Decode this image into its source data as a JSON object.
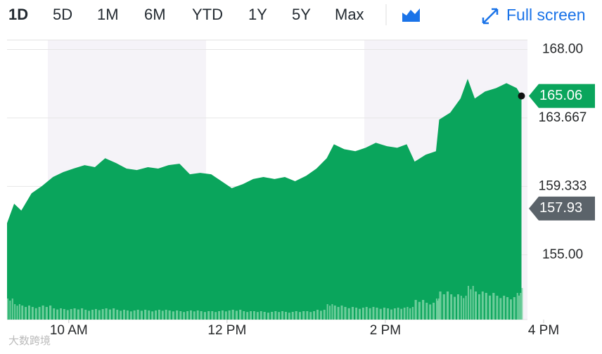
{
  "range_buttons": [
    "1D",
    "5D",
    "1M",
    "6M",
    "YTD",
    "1Y",
    "5Y",
    "Max"
  ],
  "active_range": 0,
  "full_screen": "Full screen",
  "watermark": "大数跨境",
  "chart_data": {
    "type": "area",
    "color": "#0aa55c",
    "x": [
      9.22,
      9.31,
      9.4,
      9.53,
      9.66,
      9.8,
      9.93,
      10.06,
      10.2,
      10.33,
      10.46,
      10.6,
      10.73,
      10.86,
      11.0,
      11.13,
      11.26,
      11.4,
      11.53,
      11.66,
      11.8,
      11.93,
      12.06,
      12.2,
      12.33,
      12.46,
      12.6,
      12.73,
      12.86,
      13.0,
      13.13,
      13.26,
      13.35,
      13.48,
      13.62,
      13.75,
      13.88,
      14.02,
      14.15,
      14.27,
      14.37,
      14.51,
      14.64,
      14.68,
      14.82,
      14.95,
      15.04,
      15.13,
      15.26,
      15.4,
      15.53,
      15.66,
      15.72
    ],
    "values": [
      157.0,
      158.24,
      157.8,
      158.9,
      159.35,
      159.93,
      160.24,
      160.46,
      160.68,
      160.55,
      161.12,
      160.81,
      160.46,
      160.37,
      160.55,
      160.46,
      160.68,
      160.77,
      160.1,
      160.19,
      160.1,
      159.66,
      159.22,
      159.48,
      159.8,
      159.93,
      159.8,
      159.93,
      159.66,
      160.01,
      160.46,
      161.12,
      162.0,
      161.69,
      161.56,
      161.78,
      162.1,
      161.88,
      161.78,
      162.0,
      160.9,
      161.34,
      161.56,
      163.56,
      164.0,
      164.9,
      166.14,
      164.9,
      165.34,
      165.56,
      165.87,
      165.56,
      165.06
    ],
    "volume": [
      30,
      22,
      20,
      18,
      20,
      16,
      15,
      16,
      14,
      15,
      16,
      14,
      13,
      14,
      13,
      14,
      13,
      12,
      13,
      12,
      12,
      13,
      14,
      12,
      12,
      11,
      12,
      11,
      12,
      12,
      14,
      22,
      20,
      18,
      17,
      18,
      17,
      16,
      17,
      18,
      28,
      24,
      30,
      40,
      36,
      34,
      48,
      40,
      38,
      34,
      32,
      38,
      45
    ],
    "xlim": [
      9.22,
      16
    ],
    "xticks": [
      {
        "value": 10,
        "label": "10 AM"
      },
      {
        "value": 12,
        "label": "12 PM"
      },
      {
        "value": 14,
        "label": "2 PM"
      },
      {
        "value": 16,
        "label": "4 PM"
      }
    ],
    "ylim": [
      150.9,
      168.6
    ],
    "yticks": [
      {
        "value": 155,
        "label": "155.00"
      },
      159.333,
      163.667,
      {
        "value": 168,
        "label": "168.00"
      }
    ],
    "grid": true,
    "last_price": 165.06,
    "previous_close": 157.93
  }
}
